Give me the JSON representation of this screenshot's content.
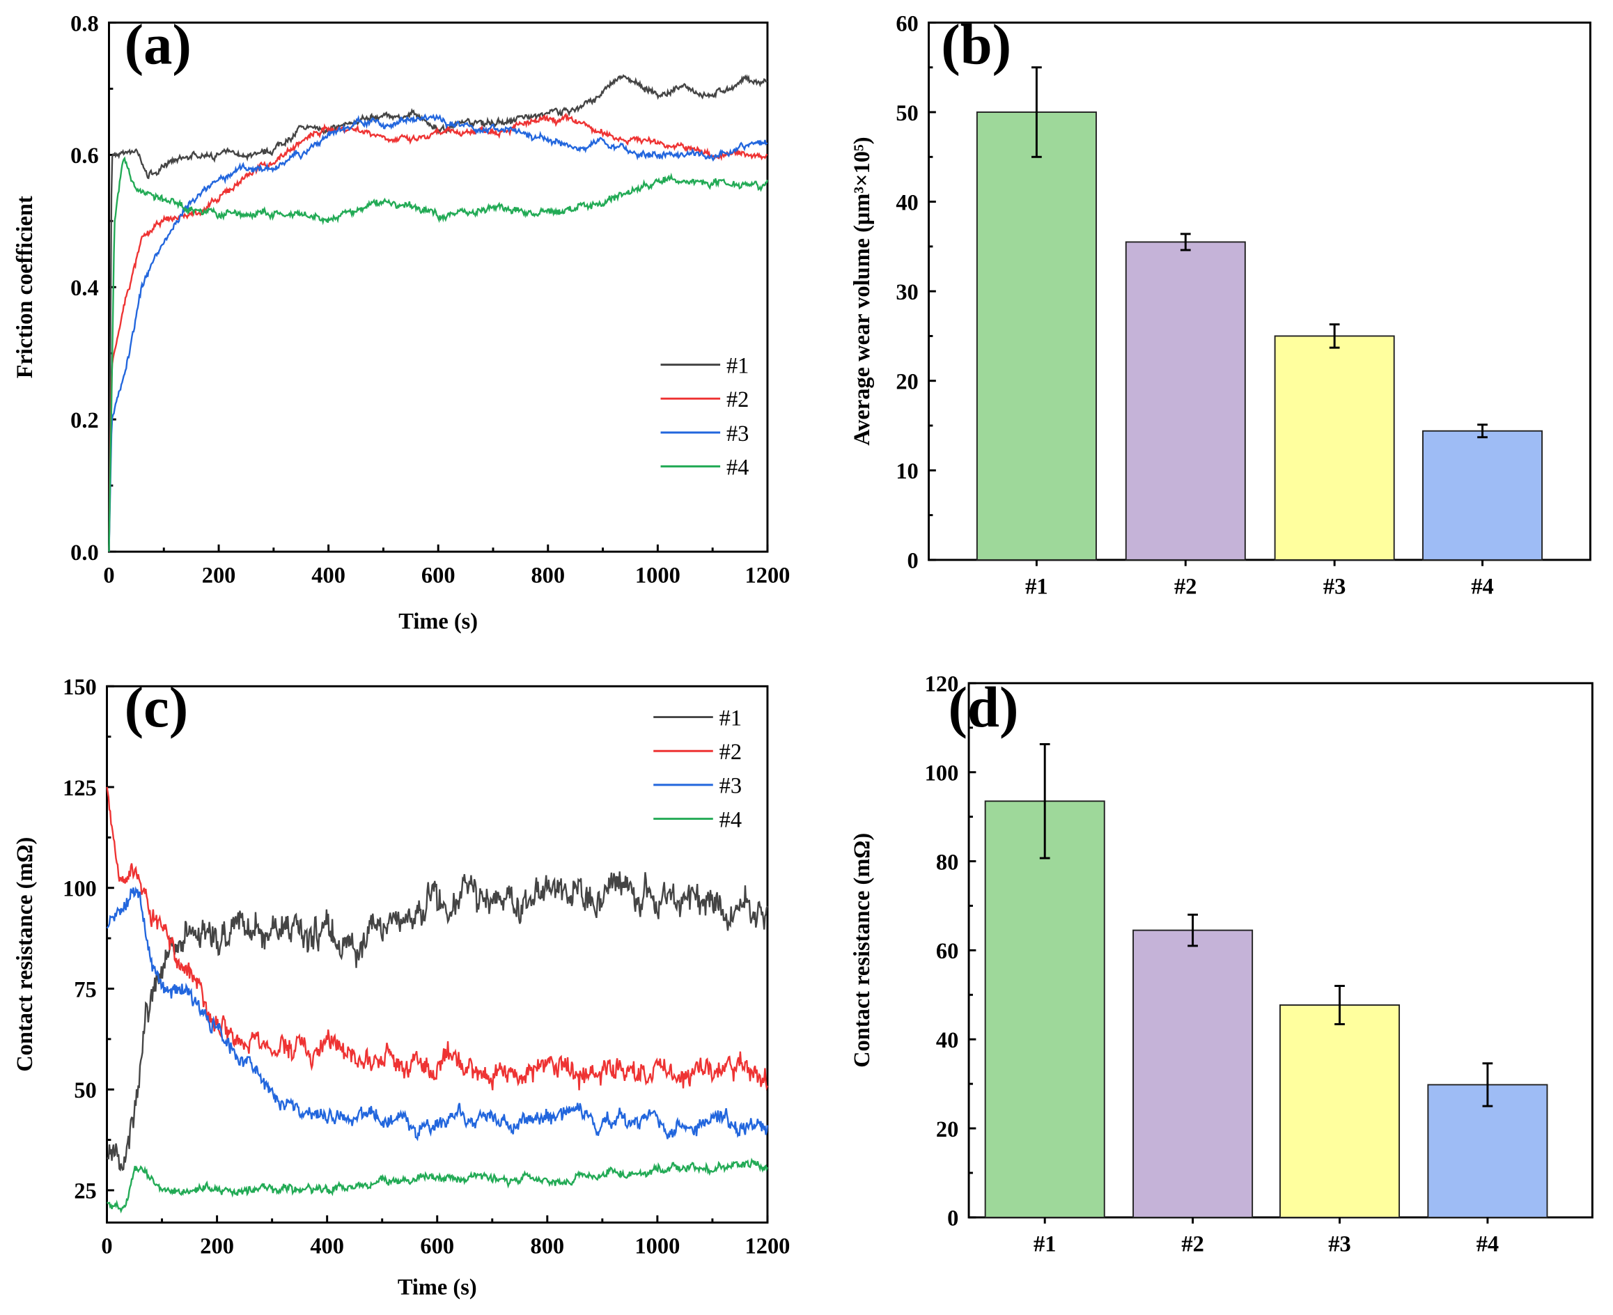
{
  "chart_data": [
    {
      "id": "a",
      "type": "line",
      "panel_label": "(a)",
      "xlabel": "Time (s)",
      "ylabel": "Friction coefficient",
      "xlim": [
        0,
        1200
      ],
      "ylim": [
        0,
        0.8
      ],
      "xticks": [
        "0",
        "200",
        "400",
        "600",
        "800",
        "1000",
        "1200"
      ],
      "yticks": [
        "0.0",
        "0.2",
        "0.4",
        "0.6",
        "0.8"
      ],
      "legend_position": "center-right",
      "series": [
        {
          "name": "#1",
          "color": "#444444",
          "x": [
            0,
            5,
            20,
            50,
            70,
            100,
            150,
            200,
            250,
            300,
            350,
            400,
            450,
            500,
            550,
            600,
            650,
            700,
            800,
            850,
            900,
            930,
            1000,
            1050,
            1100,
            1150,
            1200
          ],
          "y": [
            0,
            0.6,
            0.6,
            0.61,
            0.57,
            0.58,
            0.6,
            0.6,
            0.6,
            0.61,
            0.64,
            0.64,
            0.65,
            0.66,
            0.66,
            0.64,
            0.65,
            0.65,
            0.66,
            0.67,
            0.69,
            0.72,
            0.69,
            0.7,
            0.69,
            0.71,
            0.71
          ]
        },
        {
          "name": "#2",
          "color": "#ee3333",
          "x": [
            0,
            5,
            30,
            60,
            100,
            150,
            200,
            250,
            300,
            350,
            400,
            450,
            500,
            550,
            600,
            700,
            800,
            850,
            900,
            1000,
            1050,
            1100,
            1200
          ],
          "y": [
            0,
            0.28,
            0.38,
            0.47,
            0.5,
            0.51,
            0.53,
            0.57,
            0.59,
            0.62,
            0.64,
            0.64,
            0.63,
            0.62,
            0.63,
            0.64,
            0.65,
            0.65,
            0.63,
            0.62,
            0.61,
            0.6,
            0.6
          ]
        },
        {
          "name": "#3",
          "color": "#2266dd",
          "x": [
            0,
            5,
            30,
            60,
            100,
            150,
            200,
            250,
            300,
            350,
            400,
            450,
            500,
            550,
            600,
            700,
            800,
            850,
            900,
            950,
            1000,
            1100,
            1200
          ],
          "y": [
            0,
            0.2,
            0.28,
            0.4,
            0.47,
            0.53,
            0.56,
            0.58,
            0.58,
            0.6,
            0.63,
            0.65,
            0.65,
            0.65,
            0.65,
            0.64,
            0.62,
            0.61,
            0.62,
            0.6,
            0.6,
            0.6,
            0.62
          ]
        },
        {
          "name": "#4",
          "color": "#22aa55",
          "x": [
            0,
            10,
            25,
            50,
            100,
            150,
            200,
            300,
            400,
            500,
            600,
            700,
            800,
            900,
            1000,
            1100,
            1200
          ],
          "y": [
            0,
            0.5,
            0.6,
            0.55,
            0.53,
            0.52,
            0.51,
            0.51,
            0.5,
            0.53,
            0.51,
            0.52,
            0.51,
            0.53,
            0.56,
            0.56,
            0.56
          ]
        }
      ]
    },
    {
      "id": "b",
      "type": "bar",
      "panel_label": "(b)",
      "xlabel": "",
      "ylabel": "Average wear volume (μm³×10⁵)",
      "ylim": [
        0,
        60
      ],
      "yticks": [
        "0",
        "10",
        "20",
        "30",
        "40",
        "50",
        "60"
      ],
      "categories": [
        "#1",
        "#2",
        "#3",
        "#4"
      ],
      "values": [
        50,
        35.5,
        25,
        14.4
      ],
      "errors": [
        5,
        0.9,
        1.3,
        0.7
      ],
      "colors": [
        "#9ed89a",
        "#c5b3d8",
        "#ffff9e",
        "#9ebcf5"
      ]
    },
    {
      "id": "c",
      "type": "line",
      "panel_label": "(c)",
      "xlabel": "Time (s)",
      "ylabel": "Contact resistance (mΩ)",
      "xlim": [
        0,
        1200
      ],
      "ylim": [
        17,
        150
      ],
      "xticks": [
        "0",
        "200",
        "400",
        "600",
        "800",
        "1000",
        "1200"
      ],
      "yticks": [
        "25",
        "50",
        "75",
        "100",
        "125",
        "150"
      ],
      "legend_position": "top-right",
      "series": [
        {
          "name": "#1",
          "color": "#444444",
          "x": [
            0,
            30,
            50,
            70,
            100,
            150,
            200,
            300,
            400,
            450,
            500,
            600,
            700,
            800,
            900,
            1000,
            1100,
            1200
          ],
          "y": [
            33,
            32,
            40,
            65,
            80,
            88,
            90,
            90,
            88,
            86,
            92,
            96,
            97,
            97,
            97,
            98,
            97,
            96
          ]
        },
        {
          "name": "#2",
          "color": "#ee3333",
          "x": [
            0,
            20,
            50,
            80,
            120,
            160,
            200,
            250,
            300,
            400,
            500,
            600,
            800,
            1000,
            1200
          ],
          "y": [
            125,
            108,
            105,
            95,
            85,
            77,
            68,
            62,
            60,
            60,
            57,
            55,
            55,
            55,
            54
          ]
        },
        {
          "name": "#3",
          "color": "#2266dd",
          "x": [
            0,
            30,
            60,
            80,
            150,
            200,
            250,
            300,
            350,
            400,
            500,
            600,
            800,
            1000,
            1200
          ],
          "y": [
            90,
            95,
            98,
            80,
            70,
            65,
            57,
            50,
            46,
            43,
            42,
            42,
            43,
            43,
            42
          ]
        },
        {
          "name": "#4",
          "color": "#22aa55",
          "x": [
            0,
            30,
            50,
            80,
            100,
            200,
            300,
            400,
            500,
            600,
            800,
            1000,
            1200
          ],
          "y": [
            22,
            20,
            30,
            28,
            26,
            25,
            25,
            25,
            27,
            28,
            28,
            30,
            31
          ]
        }
      ]
    },
    {
      "id": "d",
      "type": "bar",
      "panel_label": "(d)",
      "xlabel": "",
      "ylabel": "Contact resistance (mΩ)",
      "ylim": [
        0,
        120
      ],
      "yticks": [
        "0",
        "20",
        "40",
        "60",
        "80",
        "100",
        "120"
      ],
      "categories": [
        "#1",
        "#2",
        "#3",
        "#4"
      ],
      "values": [
        93.5,
        64.5,
        47.7,
        29.8
      ],
      "errors": [
        12.8,
        3.5,
        4.3,
        4.8
      ],
      "colors": [
        "#9ed89a",
        "#c5b3d8",
        "#ffff9e",
        "#9ebcf5"
      ]
    }
  ]
}
